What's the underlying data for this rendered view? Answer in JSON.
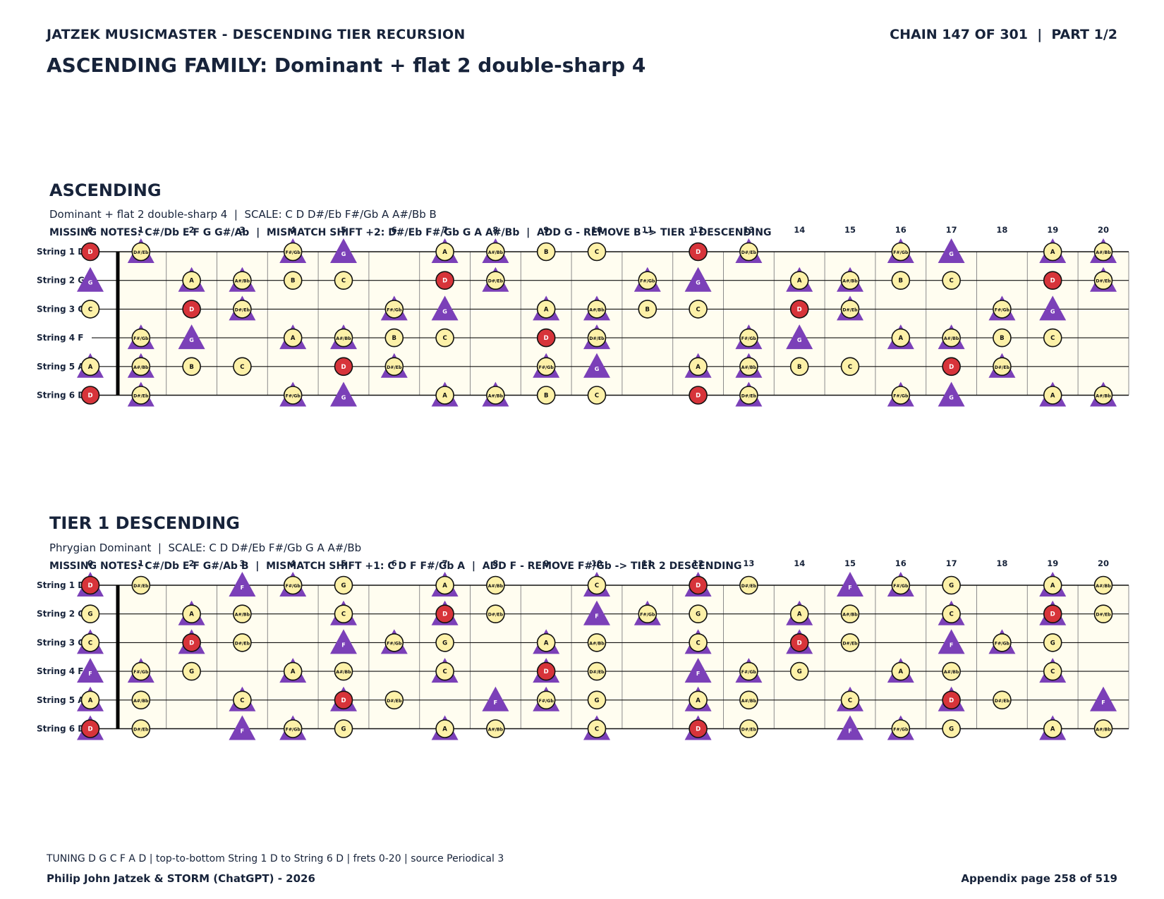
{
  "header": {
    "left": "JATZEK MUSICMASTER - DESCENDING TIER RECURSION",
    "right": "CHAIN 147 OF 301  |  PART 1/2"
  },
  "main_title": "ASCENDING FAMILY: Dominant + flat 2 double-sharp 4",
  "colors": {
    "board_bg": "#fffdf0",
    "note_fill": "#fdf1a8",
    "root_fill": "#d7343a",
    "triangle": "#7b40b8",
    "text": "#17233a"
  },
  "string_labels": [
    "String 1 D",
    "String 2 G",
    "String 3 C",
    "String 4 F",
    "String 5 A",
    "String 6 D"
  ],
  "fret_numbers": [
    "0",
    "1",
    "2",
    "3",
    "4",
    "5",
    "6",
    "7",
    "8",
    "9",
    "10",
    "11",
    "12",
    "13",
    "14",
    "15",
    "16",
    "17",
    "18",
    "19",
    "20"
  ],
  "sections": [
    {
      "title": "ASCENDING",
      "subtitle": "Dominant + flat 2 double-sharp 4  |  SCALE: C D D#/Eb F#/Gb A A#/Bb B",
      "missing": "MISSING NOTES: C#/Db E F G G#/Ab  |  MISMATCH SHIFT +2: D#/Eb F#/Gb G A A#/Bb  |  ADD G - REMOVE B -> TIER 1 DESCENDING",
      "grid": [
        [
          "D",
          "D#/Eb",
          "",
          "",
          "F#/Gb",
          "G",
          "",
          "A",
          "A#/Bb",
          "B",
          "C",
          "",
          "D",
          "D#/Eb",
          "",
          "",
          "F#/Gb",
          "G",
          "",
          "A",
          "A#/Bb"
        ],
        [
          "G",
          "",
          "A",
          "A#/Bb",
          "B",
          "C",
          "",
          "D",
          "D#/Eb",
          "",
          "",
          "F#/Gb",
          "G",
          "",
          "A",
          "A#/Bb",
          "B",
          "C",
          "",
          "D",
          "D#/Eb"
        ],
        [
          "C",
          "",
          "D",
          "D#/Eb",
          "",
          "",
          "F#/Gb",
          "G",
          "",
          "A",
          "A#/Bb",
          "B",
          "C",
          "",
          "D",
          "D#/Eb",
          "",
          "",
          "F#/Gb",
          "G",
          ""
        ],
        [
          "",
          "F#/Gb",
          "G",
          "",
          "A",
          "A#/Bb",
          "B",
          "C",
          "",
          "D",
          "D#/Eb",
          "",
          "",
          "F#/Gb",
          "G",
          "",
          "A",
          "A#/Bb",
          "B",
          "C",
          ""
        ],
        [
          "A",
          "A#/Bb",
          "B",
          "C",
          "",
          "D",
          "D#/Eb",
          "",
          "",
          "F#/Gb",
          "G",
          "",
          "A",
          "A#/Bb",
          "B",
          "C",
          "",
          "D",
          "D#/Eb",
          "",
          ""
        ],
        [
          "D",
          "D#/Eb",
          "",
          "",
          "F#/Gb",
          "G",
          "",
          "A",
          "A#/Bb",
          "B",
          "C",
          "",
          "D",
          "D#/Eb",
          "",
          "",
          "F#/Gb",
          "G",
          "",
          "A",
          "A#/Bb"
        ]
      ],
      "roots": [
        "D"
      ],
      "triangle_notes": [
        "D#/Eb",
        "F#/Gb",
        "G",
        "A",
        "A#/Bb"
      ],
      "solid_triangle_notes": [
        "G"
      ]
    },
    {
      "title": "TIER 1 DESCENDING",
      "subtitle": "Phrygian Dominant  |  SCALE: C D D#/Eb F#/Gb G A A#/Bb",
      "missing": "MISSING NOTES: C#/Db E F G#/Ab B  |  MISMATCH SHIFT +1: C D F F#/Gb A  |  ADD F - REMOVE F#/Gb -> TIER 2 DESCENDING",
      "grid": [
        [
          "D",
          "D#/Eb",
          "",
          "F",
          "F#/Gb",
          "G",
          "",
          "A",
          "A#/Bb",
          "",
          "C",
          "",
          "D",
          "D#/Eb",
          "",
          "F",
          "F#/Gb",
          "G",
          "",
          "A",
          "A#/Bb"
        ],
        [
          "G",
          "",
          "A",
          "A#/Bb",
          "",
          "C",
          "",
          "D",
          "D#/Eb",
          "",
          "F",
          "F#/Gb",
          "G",
          "",
          "A",
          "A#/Bb",
          "",
          "C",
          "",
          "D",
          "D#/Eb"
        ],
        [
          "C",
          "",
          "D",
          "D#/Eb",
          "",
          "F",
          "F#/Gb",
          "G",
          "",
          "A",
          "A#/Bb",
          "",
          "C",
          "",
          "D",
          "D#/Eb",
          "",
          "F",
          "F#/Gb",
          "G",
          ""
        ],
        [
          "F",
          "F#/Gb",
          "G",
          "",
          "A",
          "A#/Bb",
          "",
          "C",
          "",
          "D",
          "D#/Eb",
          "",
          "F",
          "F#/Gb",
          "G",
          "",
          "A",
          "A#/Bb",
          "",
          "C",
          ""
        ],
        [
          "A",
          "A#/Bb",
          "",
          "C",
          "",
          "D",
          "D#/Eb",
          "",
          "F",
          "F#/Gb",
          "G",
          "",
          "A",
          "A#/Bb",
          "",
          "C",
          "",
          "D",
          "D#/Eb",
          "",
          "F"
        ],
        [
          "D",
          "D#/Eb",
          "",
          "F",
          "F#/Gb",
          "G",
          "",
          "A",
          "A#/Bb",
          "",
          "C",
          "",
          "D",
          "D#/Eb",
          "",
          "F",
          "F#/Gb",
          "G",
          "",
          "A",
          "A#/Bb"
        ]
      ],
      "roots": [
        "D"
      ],
      "triangle_notes": [
        "C",
        "D",
        "F",
        "F#/Gb",
        "A"
      ],
      "solid_triangle_notes": [
        "F"
      ]
    }
  ],
  "footer": {
    "tuning": "TUNING D G C F A D | top-to-bottom String 1 D to String 6 D | frets 0-20 | source Periodical 3",
    "credit": "Philip John Jatzek & STORM (ChatGPT) - 2026",
    "page": "Appendix page 258 of 519"
  }
}
